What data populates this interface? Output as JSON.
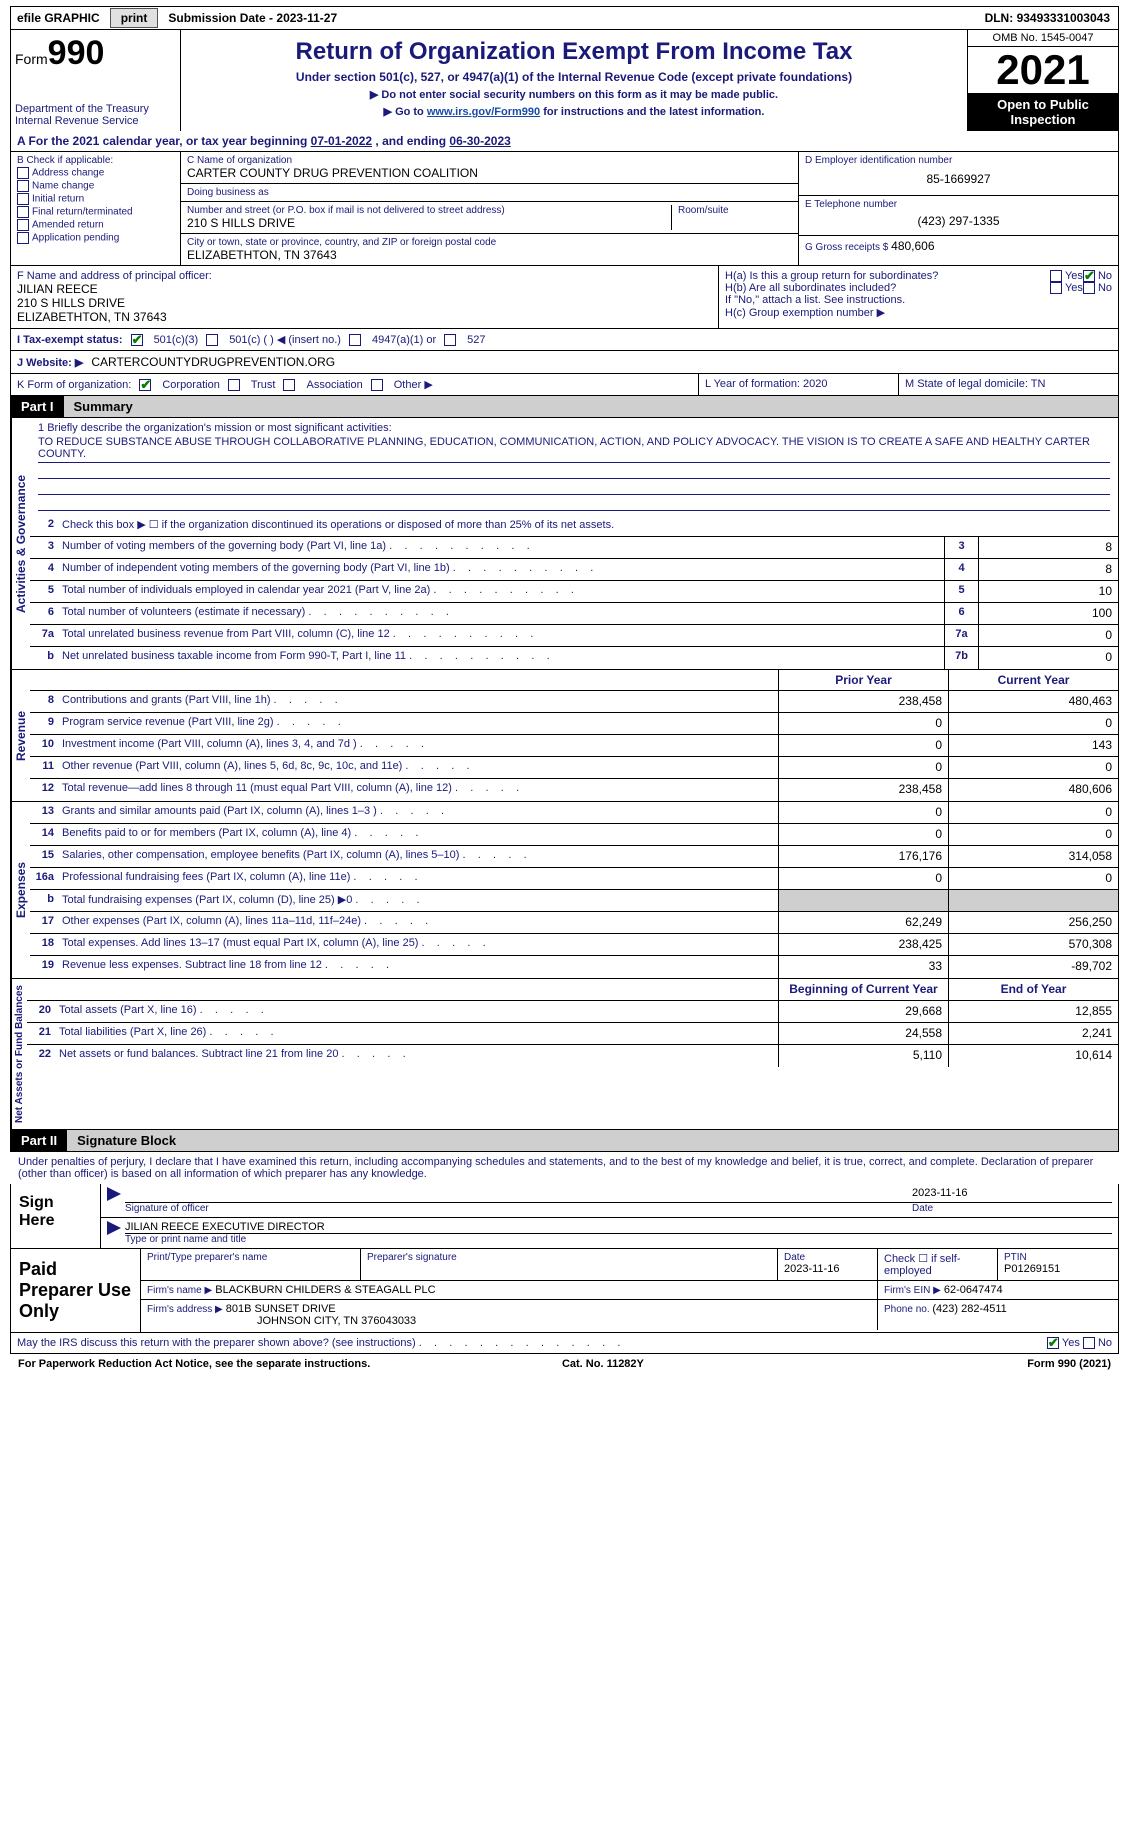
{
  "topbar": {
    "efile": "efile GRAPHIC",
    "print": "print",
    "sub_lbl": "Submission Date - ",
    "sub_date": "2023-11-27",
    "dln_lbl": "DLN: ",
    "dln": "93493331003043"
  },
  "header": {
    "form_lbl": "Form",
    "form_no": "990",
    "dept": "Department of the Treasury",
    "irs": "Internal Revenue Service",
    "title": "Return of Organization Exempt From Income Tax",
    "subtitle": "Under section 501(c), 527, or 4947(a)(1) of the Internal Revenue Code (except private foundations)",
    "line1": "▶ Do not enter social security numbers on this form as it may be made public.",
    "line2_pre": "▶ Go to ",
    "line2_link": "www.irs.gov/Form990",
    "line2_post": " for instructions and the latest information.",
    "omb": "OMB No. 1545-0047",
    "year": "2021",
    "inspect": "Open to Public Inspection"
  },
  "calyear": {
    "pre": "A For the 2021 calendar year, or tax year beginning ",
    "begin": "07-01-2022",
    "mid": "   , and ending ",
    "end": "06-30-2023"
  },
  "boxB": {
    "label": "B Check if applicable:",
    "items": [
      "Address change",
      "Name change",
      "Initial return",
      "Final return/terminated",
      "Amended return",
      "Application pending"
    ]
  },
  "boxC": {
    "name_lbl": "C Name of organization",
    "name": "CARTER COUNTY DRUG PREVENTION COALITION",
    "dba_lbl": "Doing business as",
    "dba": "",
    "street_lbl": "Number and street (or P.O. box if mail is not delivered to street address)",
    "street": "210 S HILLS DRIVE",
    "room_lbl": "Room/suite",
    "room": "",
    "city_lbl": "City or town, state or province, country, and ZIP or foreign postal code",
    "city": "ELIZABETHTON, TN  37643"
  },
  "boxD": {
    "lbl": "D Employer identification number",
    "val": "85-1669927"
  },
  "boxE": {
    "lbl": "E Telephone number",
    "val": "(423) 297-1335"
  },
  "boxG": {
    "lbl": "G Gross receipts $ ",
    "val": "480,606"
  },
  "boxF": {
    "lbl": "F  Name and address of principal officer:",
    "name": "JILIAN REECE",
    "street": "210 S HILLS DRIVE",
    "city": "ELIZABETHTON, TN  37643"
  },
  "boxH": {
    "a_lbl": "H(a)  Is this a group return for subordinates?",
    "b_lbl": "H(b)  Are all subordinates included?",
    "b_note": "If \"No,\" attach a list. See instructions.",
    "c_lbl": "H(c)  Group exemption number ▶",
    "yes": "Yes",
    "no": "No"
  },
  "boxI": {
    "lbl": "I    Tax-exempt status:",
    "opts": [
      "501(c)(3)",
      "501(c) (   ) ◀ (insert no.)",
      "4947(a)(1) or",
      "527"
    ]
  },
  "boxJ": {
    "lbl": "J    Website: ▶",
    "val": "CARTERCOUNTYDRUGPREVENTION.ORG"
  },
  "boxK": {
    "lbl": "K Form of organization:",
    "opts": [
      "Corporation",
      "Trust",
      "Association",
      "Other ▶"
    ]
  },
  "boxL": {
    "lbl": "L Year of formation: ",
    "val": "2020"
  },
  "boxM": {
    "lbl": "M State of legal domicile: ",
    "val": "TN"
  },
  "parts": {
    "p1": "Part I",
    "p1_title": "Summary",
    "p2": "Part II",
    "p2_title": "Signature Block"
  },
  "summary": {
    "vert": {
      "ag": "Activities & Governance",
      "rev": "Revenue",
      "exp": "Expenses",
      "na": "Net Assets or Fund Balances"
    },
    "l1_lbl": "Briefly describe the organization's mission or most significant activities:",
    "l1_val": "TO REDUCE SUBSTANCE ABUSE THROUGH COLLABORATIVE PLANNING, EDUCATION, COMMUNICATION, ACTION, AND POLICY ADVOCACY. THE VISION IS TO CREATE A SAFE AND HEALTHY CARTER COUNTY.",
    "l2": "Check this box ▶ ☐  if the organization discontinued its operations or disposed of more than 25% of its net assets.",
    "rows_ag": [
      {
        "n": "3",
        "d": "Number of voting members of the governing body (Part VI, line 1a)",
        "b": "3",
        "v": "8"
      },
      {
        "n": "4",
        "d": "Number of independent voting members of the governing body (Part VI, line 1b)",
        "b": "4",
        "v": "8"
      },
      {
        "n": "5",
        "d": "Total number of individuals employed in calendar year 2021 (Part V, line 2a)",
        "b": "5",
        "v": "10"
      },
      {
        "n": "6",
        "d": "Total number of volunteers (estimate if necessary)",
        "b": "6",
        "v": "100"
      },
      {
        "n": "7a",
        "d": "Total unrelated business revenue from Part VIII, column (C), line 12",
        "b": "7a",
        "v": "0"
      },
      {
        "n": "b",
        "d": "Net unrelated business taxable income from Form 990-T, Part I, line 11",
        "b": "7b",
        "v": "0"
      }
    ],
    "col_hdr": {
      "prior": "Prior Year",
      "current": "Current Year"
    },
    "rows_rev": [
      {
        "n": "8",
        "d": "Contributions and grants (Part VIII, line 1h)",
        "p": "238,458",
        "c": "480,463"
      },
      {
        "n": "9",
        "d": "Program service revenue (Part VIII, line 2g)",
        "p": "0",
        "c": "0"
      },
      {
        "n": "10",
        "d": "Investment income (Part VIII, column (A), lines 3, 4, and 7d )",
        "p": "0",
        "c": "143"
      },
      {
        "n": "11",
        "d": "Other revenue (Part VIII, column (A), lines 5, 6d, 8c, 9c, 10c, and 11e)",
        "p": "0",
        "c": "0"
      },
      {
        "n": "12",
        "d": "Total revenue—add lines 8 through 11 (must equal Part VIII, column (A), line 12)",
        "p": "238,458",
        "c": "480,606"
      }
    ],
    "rows_exp": [
      {
        "n": "13",
        "d": "Grants and similar amounts paid (Part IX, column (A), lines 1–3 )",
        "p": "0",
        "c": "0"
      },
      {
        "n": "14",
        "d": "Benefits paid to or for members (Part IX, column (A), line 4)",
        "p": "0",
        "c": "0"
      },
      {
        "n": "15",
        "d": "Salaries, other compensation, employee benefits (Part IX, column (A), lines 5–10)",
        "p": "176,176",
        "c": "314,058"
      },
      {
        "n": "16a",
        "d": "Professional fundraising fees (Part IX, column (A), line 11e)",
        "p": "0",
        "c": "0"
      },
      {
        "n": "b",
        "d": "Total fundraising expenses (Part IX, column (D), line 25) ▶0",
        "p": "",
        "c": "",
        "shaded": true
      },
      {
        "n": "17",
        "d": "Other expenses (Part IX, column (A), lines 11a–11d, 11f–24e)",
        "p": "62,249",
        "c": "256,250"
      },
      {
        "n": "18",
        "d": "Total expenses. Add lines 13–17 (must equal Part IX, column (A), line 25)",
        "p": "238,425",
        "c": "570,308"
      },
      {
        "n": "19",
        "d": "Revenue less expenses. Subtract line 18 from line 12",
        "p": "33",
        "c": "-89,702"
      }
    ],
    "col_hdr2": {
      "begin": "Beginning of Current Year",
      "end": "End of Year"
    },
    "rows_na": [
      {
        "n": "20",
        "d": "Total assets (Part X, line 16)",
        "p": "29,668",
        "c": "12,855"
      },
      {
        "n": "21",
        "d": "Total liabilities (Part X, line 26)",
        "p": "24,558",
        "c": "2,241"
      },
      {
        "n": "22",
        "d": "Net assets or fund balances. Subtract line 21 from line 20",
        "p": "5,110",
        "c": "10,614"
      }
    ]
  },
  "sig": {
    "penalty": "Under penalties of perjury, I declare that I have examined this return, including accompanying schedules and statements, and to the best of my knowledge and belief, it is true, correct, and complete. Declaration of preparer (other than officer) is based on all information of which preparer has any knowledge.",
    "sign_here": "Sign Here",
    "sig_officer": "Signature of officer",
    "date_val": "2023-11-16",
    "date_lbl": "Date",
    "name_title": "JILIAN REECE  EXECUTIVE DIRECTOR",
    "type_name": "Type or print name and title"
  },
  "prep": {
    "title": "Paid Preparer Use Only",
    "h_name": "Print/Type preparer's name",
    "h_sig": "Preparer's signature",
    "h_date": "Date",
    "h_date_val": "2023-11-16",
    "h_check": "Check ☐  if self-employed",
    "h_ptin": "PTIN",
    "ptin": "P01269151",
    "firm_name_lbl": "Firm's name      ▶",
    "firm_name": "BLACKBURN CHILDERS & STEAGALL PLC",
    "firm_ein_lbl": "Firm's EIN ▶",
    "firm_ein": "62-0647474",
    "firm_addr_lbl": "Firm's address ▶",
    "firm_addr1": "801B SUNSET DRIVE",
    "firm_addr2": "JOHNSON CITY, TN  376043033",
    "phone_lbl": "Phone no. ",
    "phone": "(423) 282-4511"
  },
  "discuss": {
    "q": "May the IRS discuss this return with the preparer shown above? (see instructions)",
    "yes": "Yes",
    "no": "No"
  },
  "footer": {
    "left": "For Paperwork Reduction Act Notice, see the separate instructions.",
    "mid": "Cat. No. 11282Y",
    "right": "Form 990 (2021)"
  },
  "colors": {
    "label_blue": "#1a1a7a",
    "link_blue": "#1a4ba8",
    "shade": "#cfcfcf"
  }
}
